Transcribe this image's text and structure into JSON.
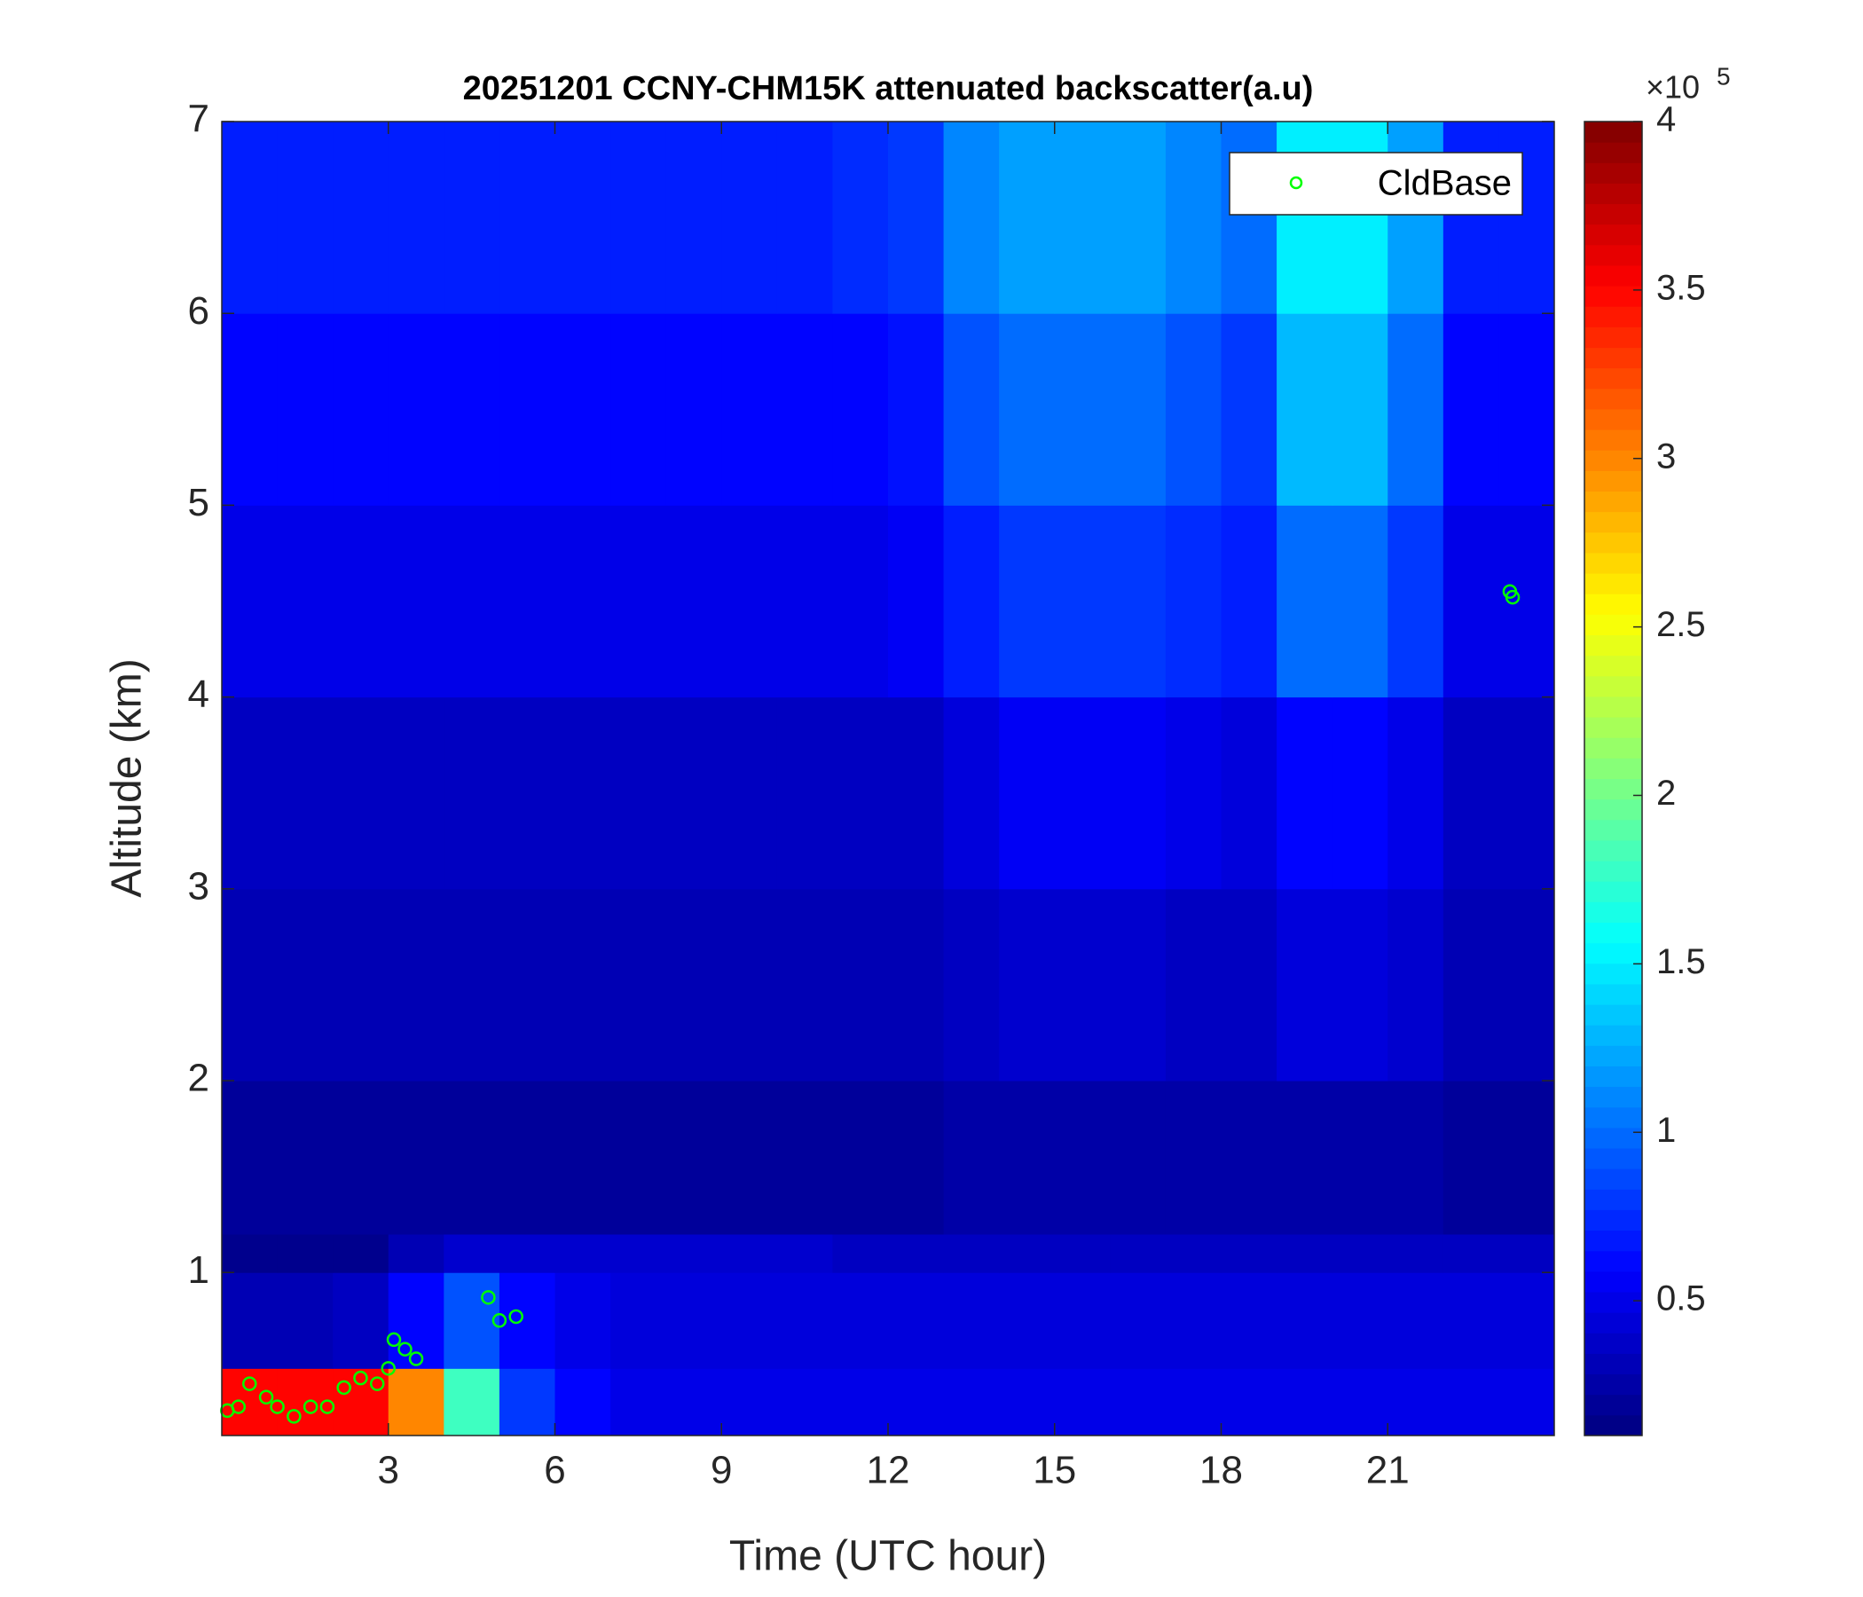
{
  "chart_data": {
    "type": "heatmap",
    "title": "20251201 CCNY-CHM15K attenuated backscatter(a.u)",
    "x_label": "Time (UTC hour)",
    "y_label": "Altitude (km)",
    "xlim": [
      0,
      24
    ],
    "ylim": [
      0.15,
      7
    ],
    "xticks": [
      3,
      6,
      9,
      12,
      15,
      18,
      21
    ],
    "yticks": [
      1,
      2,
      3,
      4,
      5,
      6,
      7
    ],
    "x_bins": [
      0,
      1,
      2,
      3,
      4,
      5,
      6,
      7,
      8,
      9,
      10,
      11,
      12,
      13,
      14,
      15,
      16,
      17,
      18,
      19,
      20,
      21,
      22,
      23,
      24
    ],
    "y_bins": [
      0.15,
      0.5,
      1,
      1.2,
      2,
      3,
      4,
      5,
      6,
      7
    ],
    "z": [
      [
        3.5,
        3.5,
        3.5,
        3.0,
        1.8,
        0.8,
        0.6,
        0.5,
        0.5,
        0.5,
        0.5,
        0.5,
        0.5,
        0.5,
        0.5,
        0.5,
        0.5,
        0.5,
        0.5,
        0.5,
        0.5,
        0.5,
        0.5,
        0.5
      ],
      [
        0.3,
        0.3,
        0.35,
        0.6,
        0.9,
        0.6,
        0.5,
        0.45,
        0.45,
        0.45,
        0.45,
        0.45,
        0.45,
        0.45,
        0.45,
        0.45,
        0.45,
        0.45,
        0.45,
        0.45,
        0.45,
        0.45,
        0.45,
        0.45
      ],
      [
        0.15,
        0.15,
        0.15,
        0.3,
        0.4,
        0.4,
        0.4,
        0.4,
        0.4,
        0.4,
        0.4,
        0.35,
        0.35,
        0.35,
        0.35,
        0.35,
        0.35,
        0.35,
        0.35,
        0.35,
        0.35,
        0.35,
        0.35,
        0.35
      ],
      [
        0.2,
        0.2,
        0.2,
        0.2,
        0.2,
        0.2,
        0.2,
        0.2,
        0.2,
        0.2,
        0.2,
        0.2,
        0.2,
        0.25,
        0.25,
        0.25,
        0.25,
        0.25,
        0.25,
        0.25,
        0.25,
        0.25,
        0.2,
        0.2
      ],
      [
        0.3,
        0.3,
        0.3,
        0.3,
        0.3,
        0.3,
        0.3,
        0.3,
        0.3,
        0.3,
        0.3,
        0.3,
        0.3,
        0.35,
        0.4,
        0.4,
        0.4,
        0.35,
        0.35,
        0.45,
        0.45,
        0.4,
        0.3,
        0.3
      ],
      [
        0.35,
        0.35,
        0.35,
        0.35,
        0.35,
        0.35,
        0.35,
        0.35,
        0.35,
        0.35,
        0.35,
        0.35,
        0.35,
        0.45,
        0.55,
        0.55,
        0.55,
        0.5,
        0.45,
        0.6,
        0.6,
        0.5,
        0.35,
        0.35
      ],
      [
        0.5,
        0.5,
        0.5,
        0.5,
        0.5,
        0.5,
        0.5,
        0.5,
        0.5,
        0.5,
        0.5,
        0.5,
        0.55,
        0.7,
        0.8,
        0.8,
        0.8,
        0.75,
        0.7,
        1.0,
        1.0,
        0.8,
        0.5,
        0.5
      ],
      [
        0.6,
        0.6,
        0.6,
        0.6,
        0.6,
        0.6,
        0.6,
        0.6,
        0.6,
        0.6,
        0.6,
        0.6,
        0.65,
        0.9,
        1.0,
        1.0,
        1.0,
        0.9,
        0.8,
        1.3,
        1.3,
        1.0,
        0.6,
        0.6
      ],
      [
        0.7,
        0.7,
        0.7,
        0.7,
        0.7,
        0.7,
        0.7,
        0.7,
        0.7,
        0.7,
        0.7,
        0.75,
        0.8,
        1.1,
        1.2,
        1.2,
        1.2,
        1.1,
        1.0,
        1.5,
        1.5,
        1.2,
        0.7,
        0.7
      ]
    ],
    "colormap": "jet",
    "clim": [
      0.1,
      4
    ],
    "cticks": [
      0.5,
      1,
      1.5,
      2,
      2.5,
      3,
      3.5,
      4
    ],
    "colorbar_multiplier": {
      "base": "×10",
      "exponent": "5"
    },
    "legend_position": "upper right",
    "series": [
      {
        "name": "CldBase",
        "color": "#00ff00",
        "x": [
          0.1,
          0.3,
          0.5,
          0.8,
          1.0,
          1.3,
          1.6,
          1.9,
          2.2,
          2.5,
          2.8,
          3.0,
          3.1,
          3.3,
          3.5,
          4.8,
          5.0,
          5.3,
          23.2,
          23.25
        ],
        "values": [
          0.28,
          0.3,
          0.42,
          0.35,
          0.3,
          0.25,
          0.3,
          0.3,
          0.4,
          0.45,
          0.42,
          0.5,
          0.65,
          0.6,
          0.55,
          0.87,
          0.75,
          0.77,
          4.55,
          4.52
        ]
      }
    ]
  }
}
